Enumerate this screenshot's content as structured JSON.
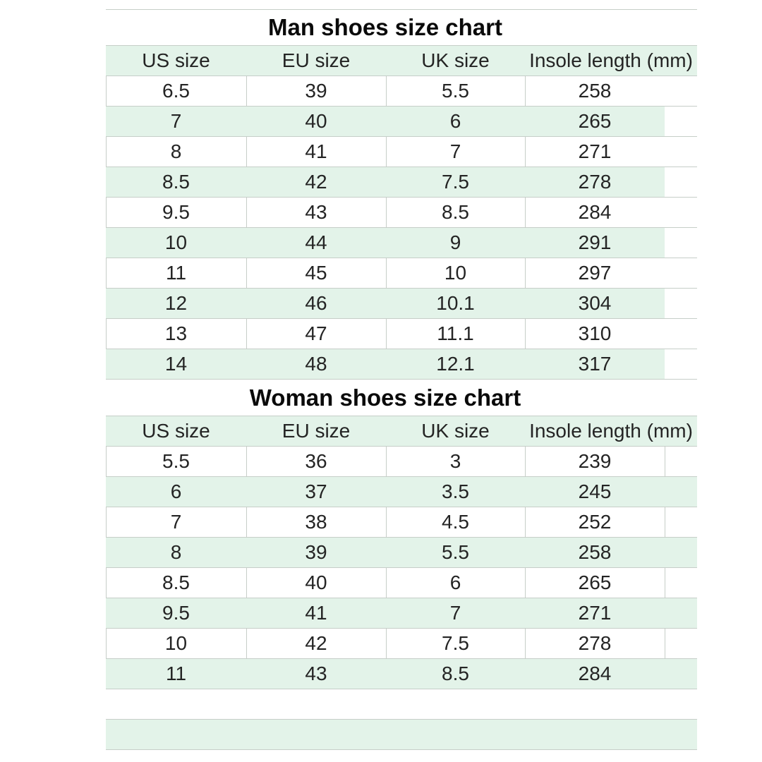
{
  "colors": {
    "background": "#ffffff",
    "row_highlight": "#e3f3e9",
    "gridline": "#c6cec8",
    "text": "#242424",
    "title_text": "#0a0a0a"
  },
  "chart_data": [
    {
      "type": "table",
      "title": "Man shoes size chart",
      "columns": [
        "US size",
        "EU size",
        "UK size",
        "Insole length (mm)"
      ],
      "rows": [
        [
          "6.5",
          "39",
          "5.5",
          "258"
        ],
        [
          "7",
          "40",
          "6",
          "265"
        ],
        [
          "8",
          "41",
          "7",
          "271"
        ],
        [
          "8.5",
          "42",
          "7.5",
          "278"
        ],
        [
          "9.5",
          "43",
          "8.5",
          "284"
        ],
        [
          "10",
          "44",
          "9",
          "291"
        ],
        [
          "11",
          "45",
          "10",
          "297"
        ],
        [
          "12",
          "46",
          "10.1",
          "304"
        ],
        [
          "13",
          "47",
          "11.1",
          "310"
        ],
        [
          "14",
          "48",
          "12.1",
          "317"
        ]
      ],
      "layout_hints": {
        "alternating_rows": true,
        "first_data_row": "white"
      }
    },
    {
      "type": "table",
      "title": "Woman shoes size chart",
      "columns": [
        "US size",
        "EU size",
        "UK size",
        "Insole length (mm)"
      ],
      "rows": [
        [
          "5.5",
          "36",
          "3",
          "239"
        ],
        [
          "6",
          "37",
          "3.5",
          "245"
        ],
        [
          "7",
          "38",
          "4.5",
          "252"
        ],
        [
          "8",
          "39",
          "5.5",
          "258"
        ],
        [
          "8.5",
          "40",
          "6",
          "265"
        ],
        [
          "9.5",
          "41",
          "7",
          "271"
        ],
        [
          "10",
          "42",
          "7.5",
          "278"
        ],
        [
          "11",
          "43",
          "8.5",
          "284"
        ]
      ],
      "trailing_empty_rows": 2,
      "layout_hints": {
        "alternating_rows": true,
        "first_data_row": "white"
      }
    }
  ]
}
